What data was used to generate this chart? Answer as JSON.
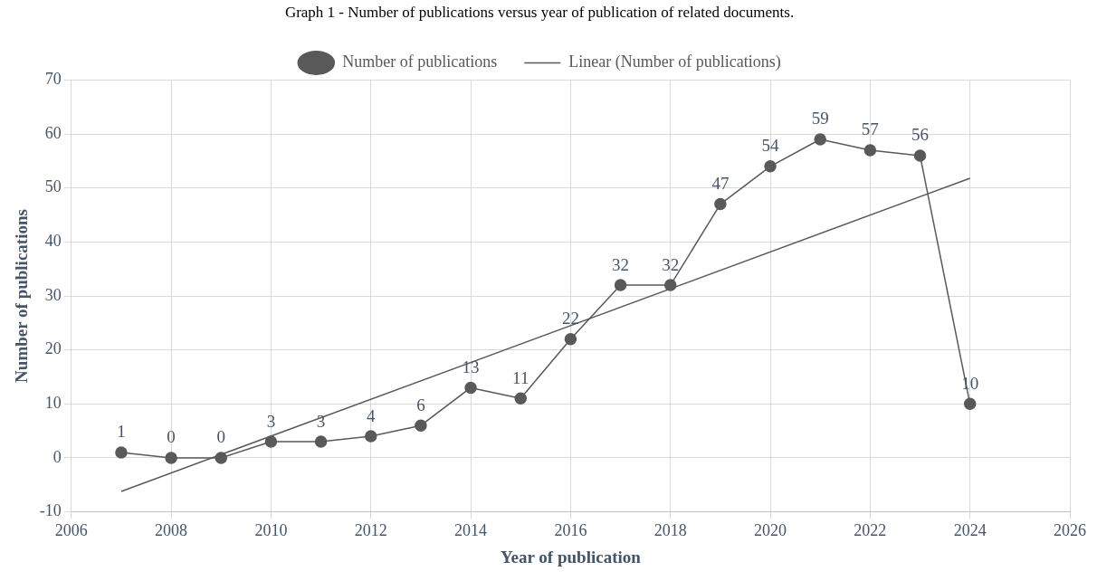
{
  "chart_data": {
    "type": "line",
    "title": "Graph 1 - Number of publications versus year of publication of related documents.",
    "xlabel": "Year of publication",
    "ylabel": "Number of publications",
    "x": [
      2007,
      2008,
      2009,
      2010,
      2011,
      2012,
      2013,
      2014,
      2015,
      2016,
      2017,
      2018,
      2019,
      2020,
      2021,
      2022,
      2023,
      2024
    ],
    "series": [
      {
        "name": "Number of publications",
        "color": "#595959",
        "marker": "circle",
        "values": [
          1,
          0,
          0,
          3,
          3,
          4,
          6,
          13,
          11,
          22,
          32,
          32,
          47,
          54,
          59,
          57,
          56,
          10
        ],
        "value_labels": [
          "1",
          "0",
          "0",
          "3",
          "3",
          "4",
          "6",
          "13",
          "11",
          "22",
          "32",
          "32",
          "47",
          "54",
          "59",
          "57",
          "56",
          "10"
        ]
      },
      {
        "name": "Linear (Number of publications)",
        "type": "line",
        "color": "#595959",
        "marker": "none",
        "x": [
          2007,
          2024
        ],
        "values": [
          -6.2,
          51.8
        ]
      }
    ],
    "xlim": [
      2006,
      2026
    ],
    "xticks": [
      2006,
      2008,
      2010,
      2012,
      2014,
      2016,
      2018,
      2020,
      2022,
      2024,
      2026
    ],
    "ylim": [
      -10,
      70
    ],
    "yticks": [
      -10,
      0,
      10,
      20,
      30,
      40,
      50,
      60,
      70
    ],
    "grid": true,
    "legend": "top",
    "line_style": "solid"
  }
}
